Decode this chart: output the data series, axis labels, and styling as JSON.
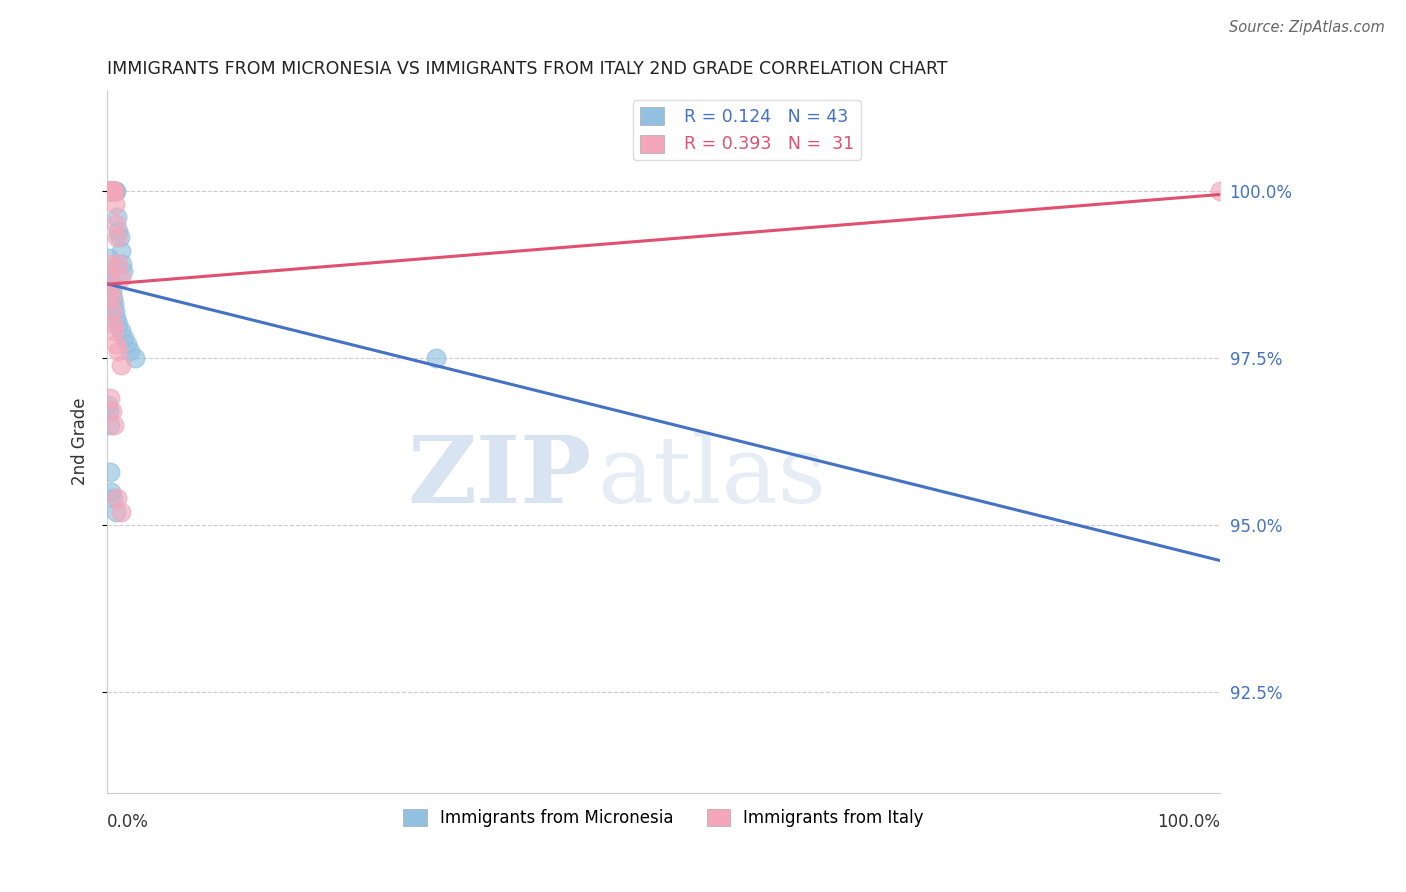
{
  "title": "IMMIGRANTS FROM MICRONESIA VS IMMIGRANTS FROM ITALY 2ND GRADE CORRELATION CHART",
  "source": "Source: ZipAtlas.com",
  "ylabel": "2nd Grade",
  "watermark_zip": "ZIP",
  "watermark_atlas": "atlas",
  "yticks": [
    92.5,
    95.0,
    97.5,
    100.0
  ],
  "ytick_labels": [
    "92.5%",
    "95.0%",
    "97.5%",
    "100.0%"
  ],
  "xlim": [
    0,
    100.0
  ],
  "ylim": [
    91.0,
    101.5
  ],
  "legend_entries": [
    {
      "label": "Immigrants from Micronesia",
      "color": "#92c0e0"
    },
    {
      "label": "Immigrants from Italy",
      "color": "#f4a7b9"
    }
  ],
  "R_micronesia": 0.124,
  "N_micronesia": 43,
  "R_italy": 0.393,
  "N_italy": 31,
  "blue_scatter_color": "#92c0e0",
  "pink_scatter_color": "#f4a7b9",
  "blue_line_color": "#4472c4",
  "pink_line_color": "#e05070",
  "micronesia_x": [
    0.1,
    0.15,
    0.2,
    0.25,
    0.3,
    0.35,
    0.4,
    0.45,
    0.5,
    0.55,
    0.6,
    0.65,
    0.7,
    0.8,
    0.9,
    1.0,
    1.1,
    1.2,
    1.3,
    1.4,
    0.15,
    0.2,
    0.25,
    0.3,
    0.4,
    0.5,
    0.6,
    0.7,
    0.8,
    1.0,
    1.2,
    1.5,
    1.8,
    2.0,
    2.5,
    0.1,
    0.15,
    0.2,
    0.25,
    0.3,
    0.5,
    0.8,
    29.5
  ],
  "micronesia_y": [
    100.0,
    100.0,
    100.0,
    100.0,
    100.0,
    100.0,
    100.0,
    100.0,
    100.0,
    100.0,
    100.0,
    100.0,
    100.0,
    100.0,
    99.6,
    99.4,
    99.3,
    99.1,
    98.9,
    98.8,
    99.0,
    98.8,
    98.7,
    98.6,
    98.5,
    98.4,
    98.3,
    98.2,
    98.1,
    98.0,
    97.9,
    97.8,
    97.7,
    97.6,
    97.5,
    96.8,
    96.7,
    96.5,
    95.8,
    95.5,
    95.4,
    95.2,
    97.5
  ],
  "italy_x": [
    0.15,
    0.2,
    0.25,
    0.3,
    0.35,
    0.4,
    0.45,
    0.5,
    0.55,
    0.6,
    0.7,
    0.8,
    0.9,
    1.0,
    1.2,
    0.15,
    0.2,
    0.25,
    0.3,
    0.4,
    0.5,
    0.6,
    0.8,
    1.0,
    1.2,
    0.25,
    0.4,
    0.6,
    0.9,
    1.2,
    100.0
  ],
  "italy_y": [
    100.0,
    100.0,
    100.0,
    100.0,
    100.0,
    100.0,
    100.0,
    100.0,
    100.0,
    100.0,
    99.8,
    99.5,
    99.3,
    98.9,
    98.7,
    98.9,
    98.7,
    98.5,
    98.4,
    98.2,
    98.0,
    97.9,
    97.7,
    97.6,
    97.4,
    96.9,
    96.7,
    96.5,
    95.4,
    95.2,
    100.0
  ],
  "grid_color": "#cccccc",
  "bg_color": "#ffffff",
  "title_color": "#222222"
}
